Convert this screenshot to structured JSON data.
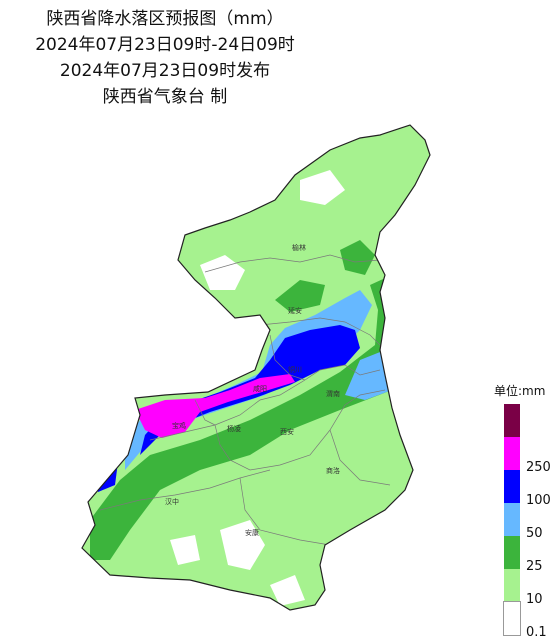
{
  "title": {
    "line1": "陕西省降水落区预报图（mm）",
    "line2": "2024年07月23日09时-24日09时",
    "line3": "2024年07月23日09时发布",
    "line4": "陕西省气象台 制"
  },
  "legend": {
    "title": "单位:mm",
    "classes": [
      {
        "label": "",
        "color": "#7a0046"
      },
      {
        "label": "250",
        "color": "#ff00ff"
      },
      {
        "label": "100",
        "color": "#0000ff"
      },
      {
        "label": "50",
        "color": "#66b8ff"
      },
      {
        "label": "25",
        "color": "#3cb43c"
      },
      {
        "label": "10",
        "color": "#a6f28f"
      },
      {
        "label": "0.1",
        "color": "#ffffff"
      }
    ]
  },
  "cities": [
    {
      "name": "榆林"
    },
    {
      "name": "延安"
    },
    {
      "name": "铜川"
    },
    {
      "name": "渭南"
    },
    {
      "name": "咸阳"
    },
    {
      "name": "宝鸡"
    },
    {
      "name": "杨凌"
    },
    {
      "name": "西安"
    },
    {
      "name": "商洛"
    },
    {
      "name": "汉中"
    },
    {
      "name": "安康"
    }
  ]
}
